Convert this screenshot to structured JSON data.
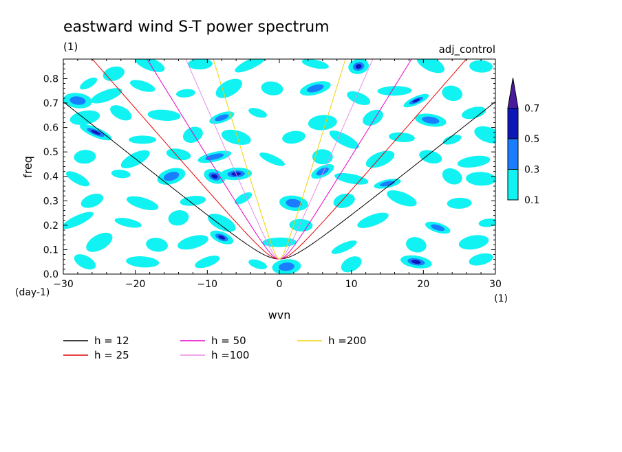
{
  "chart_data": {
    "type": "heatmap",
    "title": "eastward wind S-T power spectrum",
    "subtitle_left": "(1)",
    "subtitle_right": "adj_control",
    "xlabel": "wvn",
    "ylabel": "freq",
    "x_unit": "(1)",
    "y_unit": "(day-1)",
    "xlim": [
      -30,
      30
    ],
    "ylim": [
      0,
      0.88
    ],
    "xticks": [
      -30,
      -20,
      -10,
      0,
      10,
      20,
      30
    ],
    "yticks": [
      0.0,
      0.1,
      0.2,
      0.3,
      0.4,
      0.5,
      0.6,
      0.7,
      0.8
    ],
    "colorbar": {
      "levels": [
        0.1,
        0.3,
        0.5,
        0.7
      ],
      "labels": [
        "0.1",
        "0.3",
        "0.5",
        "0.7"
      ],
      "colors": [
        "#11f2f2",
        "#1a7dff",
        "#0d17b8",
        "#4a1a9c"
      ]
    },
    "contour_regions": [
      {
        "x": -26.5,
        "y": 0.78,
        "level": 1
      },
      {
        "x": -28,
        "y": 0.71,
        "level": 2
      },
      {
        "x": -23,
        "y": 0.82,
        "level": 1
      },
      {
        "x": -18,
        "y": 0.86,
        "level": 1
      },
      {
        "x": -11,
        "y": 0.86,
        "level": 1
      },
      {
        "x": -4,
        "y": 0.86,
        "level": 1
      },
      {
        "x": 5,
        "y": 0.86,
        "level": 1
      },
      {
        "x": 11,
        "y": 0.85,
        "level": 3
      },
      {
        "x": 21,
        "y": 0.86,
        "level": 1
      },
      {
        "x": 28,
        "y": 0.85,
        "level": 1
      },
      {
        "x": -24,
        "y": 0.73,
        "level": 1
      },
      {
        "x": -19,
        "y": 0.77,
        "level": 1
      },
      {
        "x": -13,
        "y": 0.74,
        "level": 1
      },
      {
        "x": -7,
        "y": 0.76,
        "level": 1
      },
      {
        "x": -1,
        "y": 0.76,
        "level": 1
      },
      {
        "x": 5,
        "y": 0.76,
        "level": 2
      },
      {
        "x": 11,
        "y": 0.72,
        "level": 1
      },
      {
        "x": 16,
        "y": 0.75,
        "level": 1
      },
      {
        "x": 19,
        "y": 0.71,
        "level": 3
      },
      {
        "x": 24,
        "y": 0.74,
        "level": 1
      },
      {
        "x": -27,
        "y": 0.64,
        "level": 1
      },
      {
        "x": -22,
        "y": 0.66,
        "level": 1
      },
      {
        "x": -16,
        "y": 0.65,
        "level": 1
      },
      {
        "x": -8,
        "y": 0.64,
        "level": 2
      },
      {
        "x": -3,
        "y": 0.66,
        "level": 1
      },
      {
        "x": 6,
        "y": 0.62,
        "level": 1
      },
      {
        "x": 13,
        "y": 0.64,
        "level": 1
      },
      {
        "x": 21,
        "y": 0.63,
        "level": 2
      },
      {
        "x": 27,
        "y": 0.66,
        "level": 1
      },
      {
        "x": -25.5,
        "y": 0.58,
        "level": 3
      },
      {
        "x": -19,
        "y": 0.55,
        "level": 1
      },
      {
        "x": -12,
        "y": 0.57,
        "level": 1
      },
      {
        "x": -6,
        "y": 0.56,
        "level": 1
      },
      {
        "x": 2,
        "y": 0.56,
        "level": 1
      },
      {
        "x": 9,
        "y": 0.55,
        "level": 1
      },
      {
        "x": 17,
        "y": 0.56,
        "level": 1
      },
      {
        "x": 24,
        "y": 0.55,
        "level": 1
      },
      {
        "x": 29,
        "y": 0.57,
        "level": 1
      },
      {
        "x": -27,
        "y": 0.48,
        "level": 1
      },
      {
        "x": -20,
        "y": 0.47,
        "level": 1
      },
      {
        "x": -14,
        "y": 0.49,
        "level": 1
      },
      {
        "x": -9,
        "y": 0.48,
        "level": 2
      },
      {
        "x": -1,
        "y": 0.47,
        "level": 1
      },
      {
        "x": 6,
        "y": 0.48,
        "level": 1
      },
      {
        "x": 14,
        "y": 0.47,
        "level": 1
      },
      {
        "x": 21,
        "y": 0.48,
        "level": 1
      },
      {
        "x": 27,
        "y": 0.46,
        "level": 1
      },
      {
        "x": -28,
        "y": 0.39,
        "level": 1
      },
      {
        "x": -22,
        "y": 0.41,
        "level": 1
      },
      {
        "x": -15,
        "y": 0.4,
        "level": 2
      },
      {
        "x": -9,
        "y": 0.4,
        "level": 3
      },
      {
        "x": -6,
        "y": 0.41,
        "level": 3
      },
      {
        "x": 6,
        "y": 0.42,
        "level": 2
      },
      {
        "x": 10,
        "y": 0.39,
        "level": 1
      },
      {
        "x": 15,
        "y": 0.37,
        "level": 2
      },
      {
        "x": 24,
        "y": 0.4,
        "level": 1
      },
      {
        "x": 28,
        "y": 0.39,
        "level": 1
      },
      {
        "x": -26,
        "y": 0.3,
        "level": 1
      },
      {
        "x": -19,
        "y": 0.29,
        "level": 1
      },
      {
        "x": -12,
        "y": 0.3,
        "level": 1
      },
      {
        "x": -5,
        "y": 0.31,
        "level": 1
      },
      {
        "x": 2,
        "y": 0.29,
        "level": 2
      },
      {
        "x": 9,
        "y": 0.3,
        "level": 1
      },
      {
        "x": 17,
        "y": 0.31,
        "level": 1
      },
      {
        "x": 25,
        "y": 0.29,
        "level": 1
      },
      {
        "x": -28,
        "y": 0.22,
        "level": 1
      },
      {
        "x": -21,
        "y": 0.21,
        "level": 1
      },
      {
        "x": -14,
        "y": 0.23,
        "level": 1
      },
      {
        "x": -8,
        "y": 0.21,
        "level": 1
      },
      {
        "x": 3,
        "y": 0.2,
        "level": 1
      },
      {
        "x": 13,
        "y": 0.22,
        "level": 1
      },
      {
        "x": 22,
        "y": 0.19,
        "level": 2
      },
      {
        "x": 29,
        "y": 0.21,
        "level": 1
      },
      {
        "x": -25,
        "y": 0.13,
        "level": 1
      },
      {
        "x": -17,
        "y": 0.12,
        "level": 1
      },
      {
        "x": -12,
        "y": 0.13,
        "level": 1
      },
      {
        "x": -8,
        "y": 0.15,
        "level": 3
      },
      {
        "x": 0,
        "y": 0.13,
        "level": 1
      },
      {
        "x": 9,
        "y": 0.11,
        "level": 1
      },
      {
        "x": 19,
        "y": 0.12,
        "level": 1
      },
      {
        "x": 27,
        "y": 0.13,
        "level": 1
      },
      {
        "x": -27,
        "y": 0.05,
        "level": 1
      },
      {
        "x": -19,
        "y": 0.05,
        "level": 1
      },
      {
        "x": -10,
        "y": 0.05,
        "level": 1
      },
      {
        "x": -3,
        "y": 0.04,
        "level": 1
      },
      {
        "x": 1,
        "y": 0.03,
        "level": 2
      },
      {
        "x": 10,
        "y": 0.04,
        "level": 1
      },
      {
        "x": 19,
        "y": 0.05,
        "level": 3
      },
      {
        "x": 28,
        "y": 0.06,
        "level": 1
      }
    ],
    "series": [
      {
        "name": "h = 12",
        "h": 12,
        "color": "#000000"
      },
      {
        "name": "h = 25",
        "h": 25,
        "color": "#e60000"
      },
      {
        "name": "h = 50",
        "h": 50,
        "color": "#e600c8"
      },
      {
        "name": "h =100",
        "h": 100,
        "color": "#e68ce6"
      },
      {
        "name": "h =200",
        "h": 200,
        "color": "#f0d200"
      }
    ]
  }
}
